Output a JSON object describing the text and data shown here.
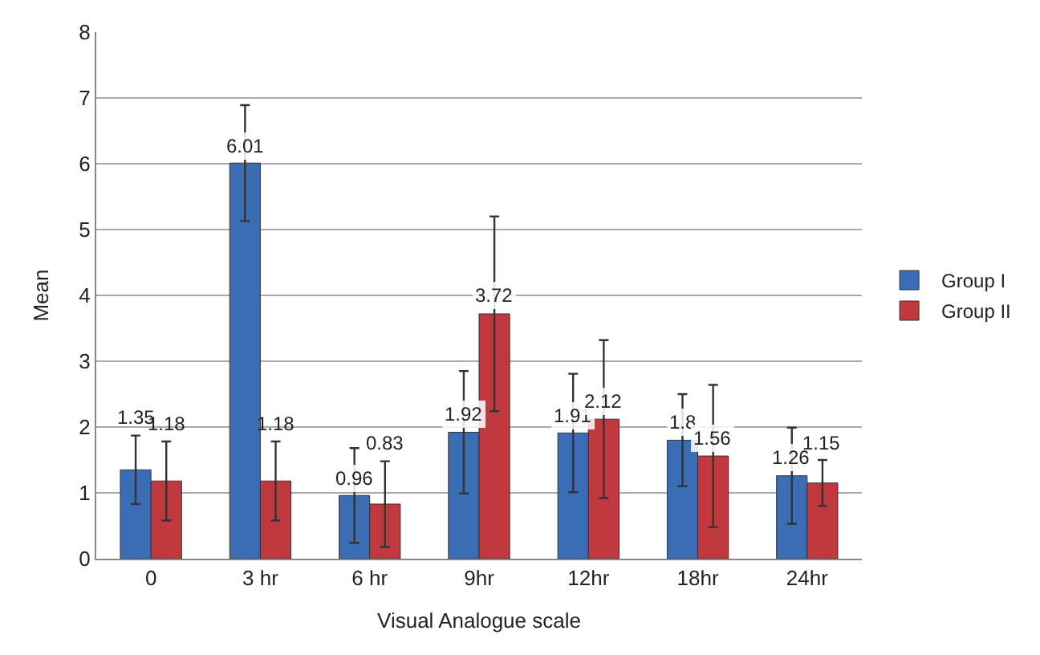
{
  "chart_data": {
    "type": "bar",
    "xlabel": "Visual Analogue scale",
    "ylabel": "Mean",
    "categories": [
      "0",
      "3 hr",
      "6 hr",
      "9hr",
      "12hr",
      "18hr",
      "24hr"
    ],
    "series": [
      {
        "name": "Group I",
        "color": "#3b6db5",
        "values": [
          1.35,
          6.01,
          0.96,
          1.92,
          1.91,
          1.8,
          1.26
        ],
        "errors": [
          0.52,
          0.88,
          0.72,
          0.93,
          0.9,
          0.7,
          0.73
        ]
      },
      {
        "name": "Group II",
        "color": "#c0393f",
        "values": [
          1.18,
          1.18,
          0.83,
          3.72,
          2.12,
          1.56,
          1.15
        ],
        "errors": [
          0.6,
          0.6,
          0.65,
          1.48,
          1.2,
          1.08,
          0.35
        ]
      }
    ],
    "ylim": [
      0,
      8
    ],
    "yticks": [
      0,
      1,
      2,
      3,
      4,
      5,
      6,
      7,
      8
    ],
    "grid": "y",
    "legend": "right",
    "data_labels": true
  }
}
